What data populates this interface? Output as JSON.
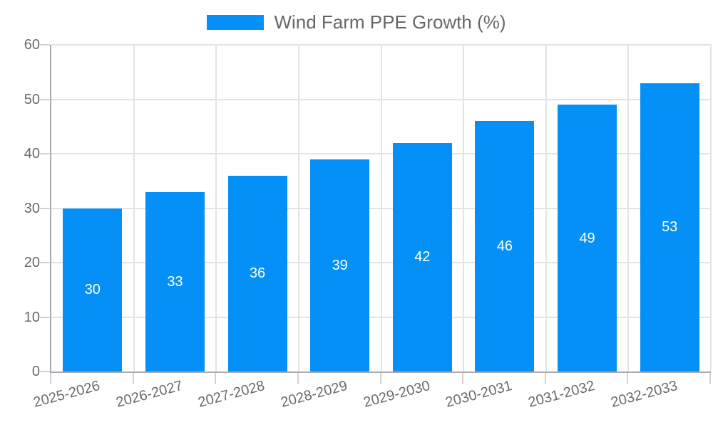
{
  "chart_data": {
    "type": "bar",
    "title": "Wind Farm PPE Growth (%)",
    "categories": [
      "2025-2026",
      "2026-2027",
      "2027-2028",
      "2028-2029",
      "2029-2030",
      "2030-2031",
      "2031-2032",
      "2032-2033"
    ],
    "values": [
      30,
      33,
      36,
      39,
      42,
      46,
      49,
      53
    ],
    "xlabel": "",
    "ylabel": "",
    "ylim": [
      0,
      60
    ],
    "yticks": [
      0,
      10,
      20,
      30,
      40,
      50,
      60
    ],
    "grid": true,
    "legend_position": "top",
    "bar_value_labels_shown": true,
    "x_tick_rotation_deg": -15,
    "colors": {
      "bar": "#0590f8",
      "bar_value_label": "#ffffff",
      "axis_text": "#6b6b6e",
      "legend_text": "#666669",
      "gridline": "#e3e3e6",
      "tick_mark": "#d2d2d6",
      "axis_line": "#ababaf",
      "background": "#ffffff"
    }
  }
}
